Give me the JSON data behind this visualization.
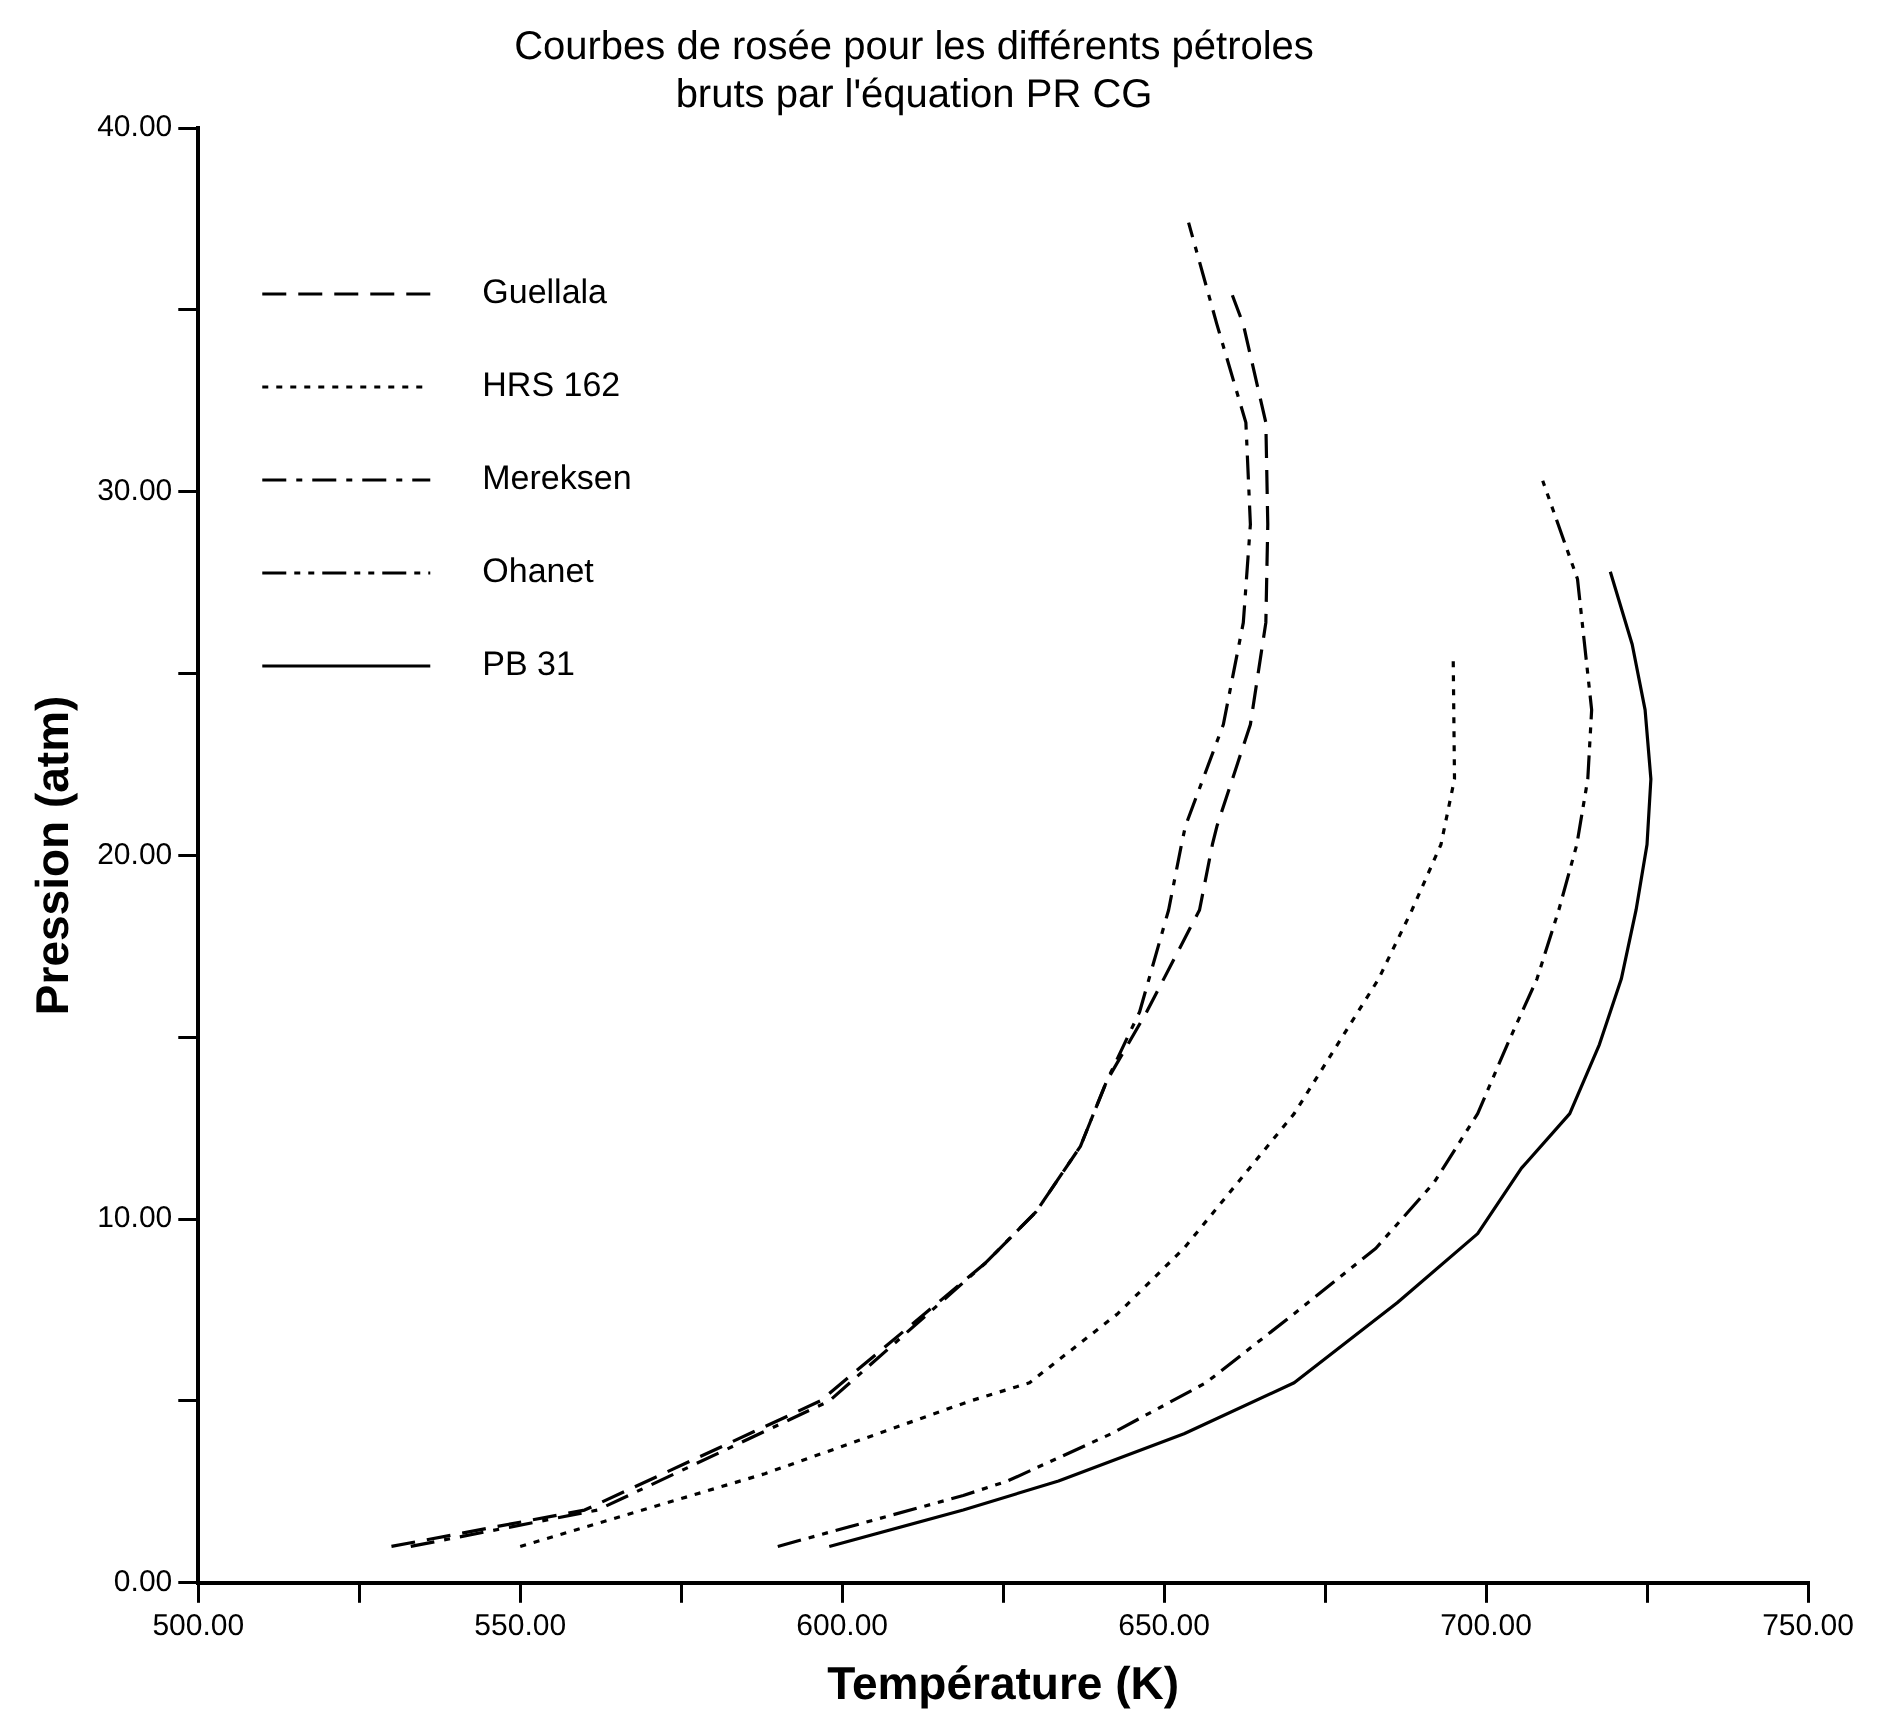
{
  "chart_data": {
    "type": "line",
    "title": "Courbes de rosée pour les différents pétroles\nbruts par l'équation PR CG",
    "xlabel": "Température (K)",
    "ylabel": "Pression (atm)",
    "xlim": [
      500,
      750
    ],
    "ylim": [
      0,
      40
    ],
    "xticks": [
      {
        "value": 500,
        "label": "500.00"
      },
      {
        "value": 525,
        "label": null
      },
      {
        "value": 550,
        "label": "550.00"
      },
      {
        "value": 575,
        "label": null
      },
      {
        "value": 600,
        "label": "600.00"
      },
      {
        "value": 625,
        "label": null
      },
      {
        "value": 650,
        "label": "650.00"
      },
      {
        "value": 675,
        "label": null
      },
      {
        "value": 700,
        "label": "700.00"
      },
      {
        "value": 725,
        "label": null
      },
      {
        "value": 750,
        "label": "750.00"
      }
    ],
    "yticks": [
      {
        "value": 0,
        "label": "0.00"
      },
      {
        "value": 5,
        "label": null
      },
      {
        "value": 10,
        "label": "10.00"
      },
      {
        "value": 15,
        "label": null
      },
      {
        "value": 20,
        "label": "20.00"
      },
      {
        "value": 25,
        "label": null
      },
      {
        "value": 30,
        "label": "30.00"
      },
      {
        "value": 35,
        "label": null
      },
      {
        "value": 40,
        "label": "40.00"
      }
    ],
    "grid": false,
    "legend": "top left",
    "marker": "none",
    "series": [
      {
        "name": "Guellala",
        "color": "#000000",
        "line_style": "dashed",
        "x": [
          530,
          560,
          596.6,
          622.3,
          630.1,
          637,
          641.1,
          647.3,
          655.5,
          657.5,
          658.2,
          663.4,
          665.8,
          666.1,
          665.8,
          662.3,
          660.6
        ],
        "values": [
          1,
          2,
          5,
          8.8,
          10.2,
          12,
          13.8,
          15.7,
          18.5,
          20.3,
          20.8,
          23.6,
          26.4,
          29.1,
          31.9,
          34.6,
          35.4
        ]
      },
      {
        "name": "HRS 162",
        "color": "#000000",
        "line_style": "dotted",
        "x": [
          550,
          569,
          588,
          619.9,
          629.1,
          642.8,
          653.1,
          670.2,
          683.3,
          688.5,
          693,
          695.1,
          694.9
        ],
        "values": [
          1,
          2,
          3,
          5,
          5.5,
          7.4,
          9.2,
          12.9,
          16.6,
          18.5,
          20.3,
          22.1,
          25.4
        ]
      },
      {
        "name": "Mereksen",
        "color": "#000000",
        "line_style": "dashdot",
        "x": [
          533,
          562,
          598,
          622.3,
          630.1,
          637,
          641.1,
          646.2,
          650.7,
          652.7,
          653.3,
          659.2,
          662.3,
          663.4,
          662.7,
          658.2,
          653.8
        ],
        "values": [
          1,
          2,
          5,
          8.8,
          10.2,
          12,
          13.8,
          15.7,
          18.5,
          20.3,
          20.8,
          23.6,
          26.4,
          29.1,
          31.9,
          34.6,
          37.4
        ]
      },
      {
        "name": "Ohanet",
        "color": "#000000",
        "line_style": "dashdotdot",
        "x": [
          590,
          618.8,
          625.7,
          641.8,
          656.5,
          670.2,
          682.9,
          691.9,
          698.7,
          703.3,
          707.9,
          711.3,
          714.1,
          715.8,
          716.4,
          714.2,
          708.8
        ],
        "values": [
          1,
          2.4,
          2.8,
          4.1,
          5.5,
          7.4,
          9.2,
          11,
          12.9,
          14.8,
          16.6,
          18.5,
          20.3,
          22.1,
          24,
          27.6,
          30.3
        ]
      },
      {
        "name": "PB 31",
        "color": "#000000",
        "line_style": "solid",
        "x": [
          598,
          618.8,
          633.6,
          653.1,
          670.2,
          686.2,
          698.7,
          705.5,
          713,
          717.6,
          721,
          723.3,
          725,
          725.6,
          724.7,
          722.7,
          719.3
        ],
        "values": [
          1,
          2,
          2.8,
          4.1,
          5.5,
          7.7,
          9.6,
          11.4,
          12.9,
          14.8,
          16.6,
          18.5,
          20.3,
          22.1,
          24,
          25.8,
          27.8
        ]
      }
    ]
  }
}
